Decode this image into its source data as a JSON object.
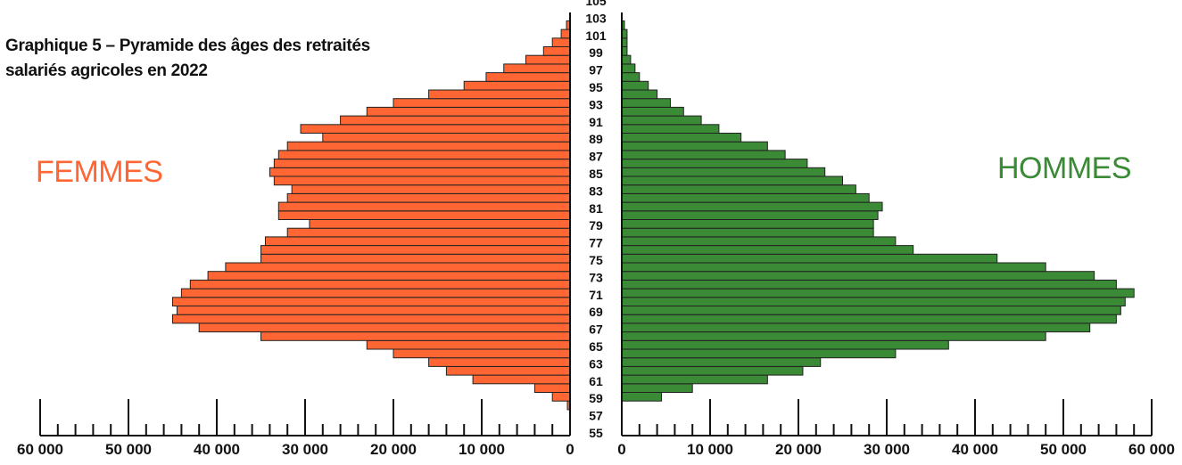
{
  "title": {
    "line1": "Graphique 5 – Pyramide des âges des retraités",
    "line2": "salariés agricoles en 2022"
  },
  "colors": {
    "femmes": "#ff6633",
    "hommes": "#3a8a36",
    "bar_border": "#222222"
  },
  "chart_data": {
    "type": "bar",
    "orientation": "horizontal",
    "subtype": "population-pyramid",
    "title": "Graphique 5 – Pyramide des âges des retraités salariés agricoles en 2022",
    "left_label": "FEMMES",
    "right_label": "HOMMES",
    "age_range": [
      55,
      105
    ],
    "age_tick_labels": [
      "55",
      "57",
      "59",
      "61",
      "63",
      "65",
      "67",
      "69",
      "71",
      "73",
      "75",
      "77",
      "79",
      "81",
      "83",
      "85",
      "87",
      "89",
      "91",
      "93",
      "95",
      "97",
      "99",
      "101",
      "103",
      "105"
    ],
    "left_axis_ticks": [
      "60 000",
      "50 000",
      "40 000",
      "30 000",
      "20 000",
      "10 000",
      "0"
    ],
    "right_axis_ticks": [
      "0",
      "10 000",
      "20 000",
      "30 000",
      "40 000",
      "50 000",
      "60 000"
    ],
    "xlim": [
      0,
      60000
    ],
    "categories": [
      58,
      59,
      60,
      61,
      62,
      63,
      64,
      65,
      66,
      67,
      68,
      69,
      70,
      71,
      72,
      73,
      74,
      75,
      76,
      77,
      78,
      79,
      80,
      81,
      82,
      83,
      84,
      85,
      86,
      87,
      88,
      89,
      90,
      91,
      92,
      93,
      94,
      95,
      96,
      97,
      98,
      99,
      100,
      101,
      102
    ],
    "series": [
      {
        "name": "FEMMES",
        "color": "#ff6633",
        "values": [
          300,
          2000,
          4000,
          11000,
          14000,
          16000,
          20000,
          23000,
          35000,
          42000,
          45000,
          44500,
          45000,
          44000,
          43000,
          41000,
          39000,
          35000,
          35000,
          34500,
          32000,
          29500,
          33000,
          33000,
          32000,
          31500,
          33500,
          34000,
          33500,
          33000,
          32000,
          28000,
          30500,
          26000,
          23000,
          20000,
          16000,
          12000,
          9500,
          7500,
          5000,
          3000,
          2000,
          1000,
          400
        ]
      },
      {
        "name": "HOMMES",
        "color": "#3a8a36",
        "values": [
          0,
          4500,
          8000,
          16500,
          20500,
          22500,
          31000,
          37000,
          48000,
          53000,
          56000,
          56500,
          57000,
          58000,
          56000,
          53500,
          48000,
          42500,
          33000,
          31000,
          28500,
          28500,
          29000,
          29500,
          28000,
          26500,
          25000,
          23000,
          21000,
          18500,
          16500,
          13500,
          11000,
          9000,
          7000,
          5500,
          4000,
          3000,
          2000,
          1500,
          1000,
          600,
          600,
          600,
          300
        ]
      }
    ]
  }
}
